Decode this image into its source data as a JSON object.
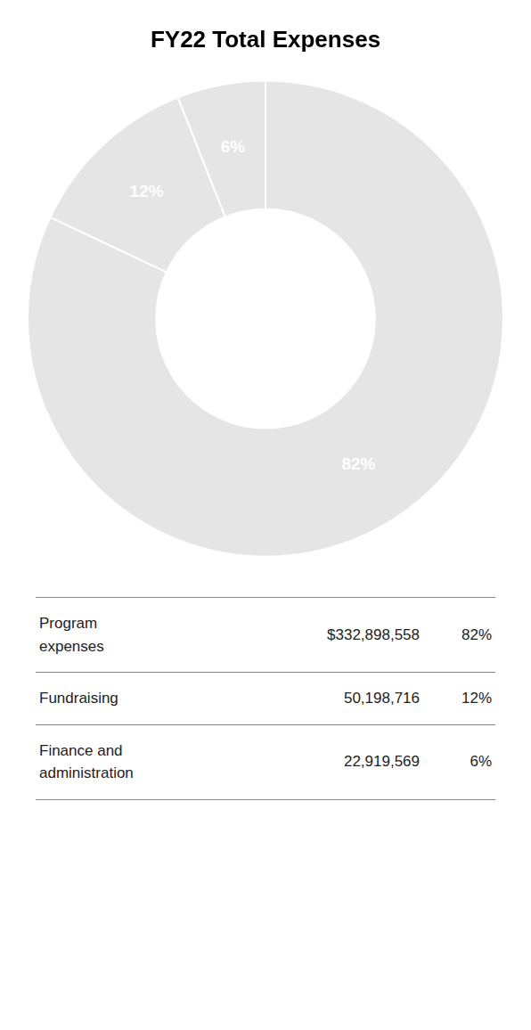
{
  "chart_data": {
    "type": "doughnut",
    "title": "FY22 Total Expenses",
    "values": [
      82,
      12,
      6
    ],
    "value_labels": [
      "82%",
      "12%",
      "6%"
    ],
    "data_labels": true,
    "table": [
      [
        "Program\nexpenses",
        "$332,898,558",
        "82%"
      ],
      [
        "Fundraising",
        "50,198,716",
        "12%"
      ],
      [
        "Finance and\nadministration",
        "22,919,569",
        "6%"
      ]
    ]
  }
}
